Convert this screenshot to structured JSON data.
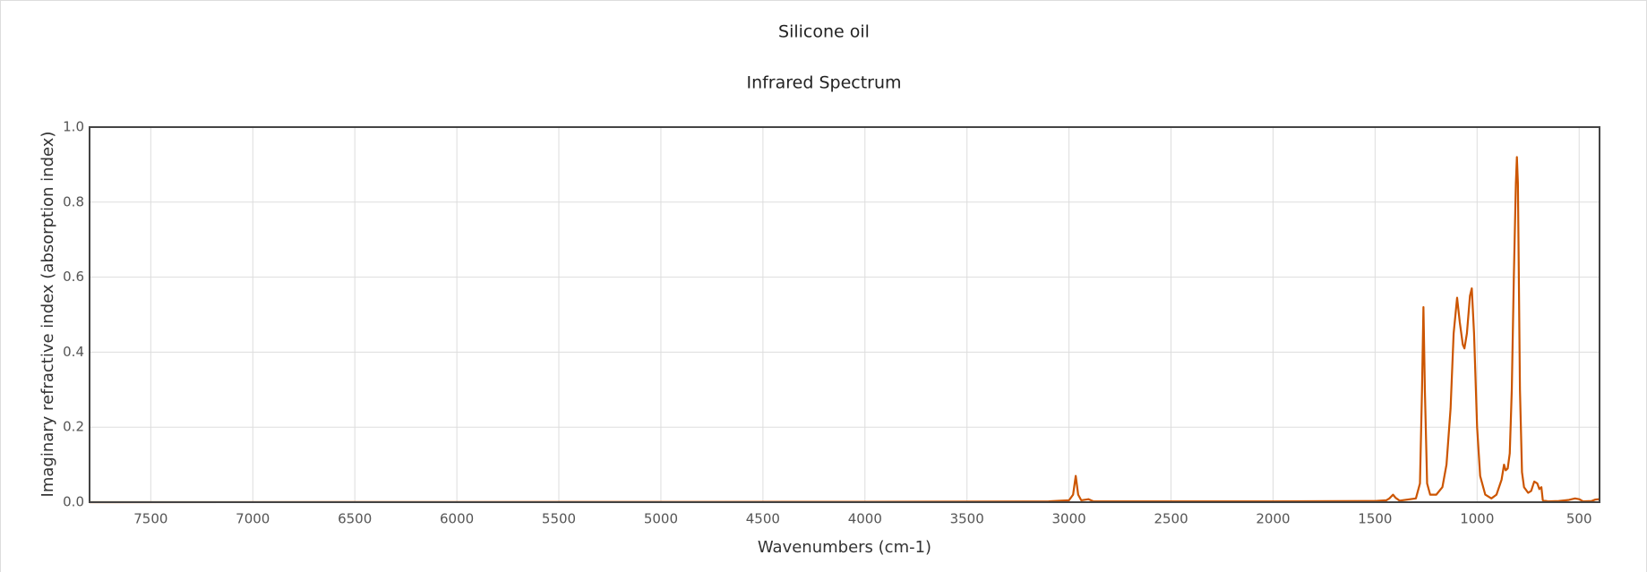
{
  "chart_data": {
    "type": "line",
    "title": "Silicone oil",
    "subtitle": "Infrared Spectrum",
    "x_label": "Wavenumbers (cm-1)",
    "y_label": "Imaginary refractive index (absorption index)",
    "color": "#cc5500",
    "grid": true,
    "xlim": [
      7800,
      400
    ],
    "ylim": [
      0,
      1
    ],
    "xticks": [
      7500,
      7000,
      6500,
      6000,
      5500,
      5000,
      4500,
      4000,
      3500,
      3000,
      2500,
      2000,
      1500,
      1000,
      500
    ],
    "yticks": [
      {
        "value": 0,
        "label": "0.0"
      },
      0.2,
      0.4,
      0.6,
      0.8,
      {
        "value": 1,
        "label": "1.0"
      }
    ],
    "x": [
      7800,
      4000,
      3100,
      3000,
      2980,
      2967,
      2955,
      2940,
      2905,
      2880,
      2000,
      1500,
      1445,
      1430,
      1412,
      1400,
      1380,
      1300,
      1280,
      1270,
      1263,
      1256,
      1245,
      1230,
      1200,
      1170,
      1150,
      1130,
      1115,
      1098,
      1085,
      1070,
      1062,
      1050,
      1035,
      1026,
      1015,
      1000,
      985,
      960,
      930,
      905,
      880,
      868,
      860,
      850,
      840,
      830,
      820,
      810,
      805,
      800,
      790,
      780,
      770,
      750,
      735,
      720,
      705,
      695,
      685,
      678,
      650,
      600,
      550,
      520,
      500,
      480,
      440,
      420,
      400
    ],
    "values": [
      0,
      0.001,
      0.002,
      0.005,
      0.02,
      0.07,
      0.02,
      0.005,
      0.008,
      0.002,
      0.002,
      0.003,
      0.005,
      0.01,
      0.02,
      0.012,
      0.004,
      0.01,
      0.05,
      0.3,
      0.52,
      0.3,
      0.05,
      0.02,
      0.02,
      0.04,
      0.1,
      0.25,
      0.45,
      0.545,
      0.48,
      0.42,
      0.41,
      0.45,
      0.55,
      0.57,
      0.45,
      0.2,
      0.07,
      0.02,
      0.01,
      0.02,
      0.06,
      0.1,
      0.085,
      0.09,
      0.13,
      0.3,
      0.6,
      0.85,
      0.92,
      0.85,
      0.3,
      0.08,
      0.04,
      0.025,
      0.03,
      0.055,
      0.05,
      0.035,
      0.04,
      0.005,
      0.002,
      0.003,
      0.006,
      0.01,
      0.008,
      0.002,
      0.003,
      0.007,
      0.008
    ]
  }
}
